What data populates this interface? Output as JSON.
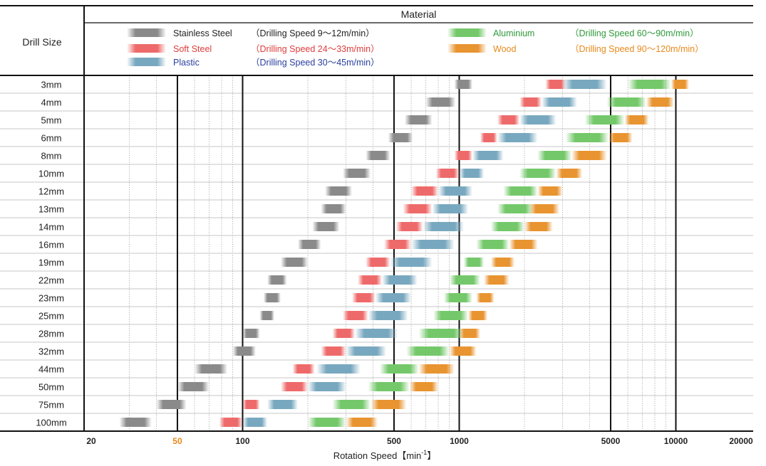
{
  "chart_data": {
    "type": "range-bar",
    "x_scale": "log",
    "xlim": [
      20,
      20000
    ],
    "header_left": "Drill Size",
    "header_top": "Material",
    "xlabel_main": "Rotation Speed【min",
    "xlabel_sup": "-1",
    "xlabel_close": "】",
    "x_ticks": [
      {
        "value": 20,
        "label": "20",
        "color": "#222222"
      },
      {
        "value": 50,
        "label": "50",
        "color": "#e8891a"
      },
      {
        "value": 100,
        "label": "100",
        "color": "#222222"
      },
      {
        "value": 500,
        "label": "500",
        "color": "#222222"
      },
      {
        "value": 1000,
        "label": "1000",
        "color": "#222222"
      },
      {
        "value": 5000,
        "label": "5000",
        "color": "#222222"
      },
      {
        "value": 10000,
        "label": "10000",
        "color": "#222222"
      },
      {
        "value": 20000,
        "label": "20000",
        "color": "#222222"
      }
    ],
    "major_lines": [
      50,
      100,
      500,
      1000,
      5000,
      10000
    ],
    "minor_lines": [
      30,
      40,
      60,
      70,
      80,
      90,
      200,
      300,
      400,
      600,
      700,
      800,
      900,
      2000,
      3000,
      4000,
      6000,
      7000,
      8000,
      9000
    ],
    "legend": [
      {
        "name": "Stainless Steel",
        "speed": "（Drilling Speed 9〜12m/min）",
        "color": "#8a8a8a",
        "text_color": "#222222"
      },
      {
        "name": "Soft Steel",
        "speed": "（Drilling Speed 24〜33m/min）",
        "color": "#ee6a6a",
        "text_color": "#e03c3c"
      },
      {
        "name": "Plastic",
        "speed": "（Drilling Speed 30〜45m/min）",
        "color": "#78a8bf",
        "text_color": "#2a3f9e"
      },
      {
        "name": "Aluminium",
        "speed": "（Drilling Speed 60〜90m/min）",
        "color": "#74c86a",
        "text_color": "#2e9a3a"
      },
      {
        "name": "Wood",
        "speed": "（Drilling Speed 90〜120m/min）",
        "color": "#e89430",
        "text_color": "#e8891a"
      }
    ],
    "categories": [
      "3mm",
      "4mm",
      "5mm",
      "6mm",
      "8mm",
      "10mm",
      "12mm",
      "13mm",
      "14mm",
      "16mm",
      "19mm",
      "22mm",
      "23mm",
      "25mm",
      "28mm",
      "32mm",
      "44mm",
      "50mm",
      "75mm",
      "100mm"
    ],
    "series": [
      {
        "name": "Stainless Steel",
        "ranges": [
          [
            950,
            1150
          ],
          [
            700,
            960
          ],
          [
            560,
            750
          ],
          [
            470,
            610
          ],
          [
            370,
            480
          ],
          [
            290,
            390
          ],
          [
            240,
            320
          ],
          [
            230,
            300
          ],
          [
            210,
            280
          ],
          [
            180,
            230
          ],
          [
            150,
            200
          ],
          [
            130,
            160
          ],
          [
            125,
            150
          ],
          [
            120,
            140
          ],
          [
            100,
            120
          ],
          [
            90,
            115
          ],
          [
            60,
            85
          ],
          [
            50,
            70
          ],
          [
            40,
            55
          ],
          [
            27,
            38
          ]
        ]
      },
      {
        "name": "Soft Steel",
        "ranges": [
          [
            2500,
            3100
          ],
          [
            1900,
            2400
          ],
          [
            1500,
            1900
          ],
          [
            1250,
            1500
          ],
          [
            950,
            1150
          ],
          [
            780,
            1000
          ],
          [
            600,
            800
          ],
          [
            550,
            750
          ],
          [
            510,
            680
          ],
          [
            450,
            600
          ],
          [
            370,
            480
          ],
          [
            340,
            440
          ],
          [
            320,
            410
          ],
          [
            290,
            380
          ],
          [
            260,
            330
          ],
          [
            230,
            300
          ],
          [
            170,
            215
          ],
          [
            150,
            200
          ],
          [
            100,
            120
          ],
          [
            78,
            100
          ]
        ]
      },
      {
        "name": "Plastic",
        "ranges": [
          [
            3000,
            4800
          ],
          [
            2400,
            3500
          ],
          [
            1900,
            2800
          ],
          [
            1500,
            2300
          ],
          [
            1150,
            1600
          ],
          [
            1000,
            1300
          ],
          [
            800,
            1150
          ],
          [
            750,
            1100
          ],
          [
            680,
            1050
          ],
          [
            600,
            950
          ],
          [
            480,
            750
          ],
          [
            440,
            640
          ],
          [
            410,
            600
          ],
          [
            380,
            580
          ],
          [
            330,
            520
          ],
          [
            300,
            460
          ],
          [
            220,
            350
          ],
          [
            200,
            300
          ],
          [
            130,
            180
          ],
          [
            100,
            130
          ]
        ]
      },
      {
        "name": "Aluminium",
        "ranges": [
          [
            6000,
            9500
          ],
          [
            4800,
            7300
          ],
          [
            3800,
            5800
          ],
          [
            3100,
            4900
          ],
          [
            2300,
            3300
          ],
          [
            1900,
            2800
          ],
          [
            1600,
            2300
          ],
          [
            1500,
            2200
          ],
          [
            1400,
            2000
          ],
          [
            1200,
            1700
          ],
          [
            1050,
            1300
          ],
          [
            900,
            1250
          ],
          [
            850,
            1150
          ],
          [
            760,
            1100
          ],
          [
            650,
            1050
          ],
          [
            570,
            900
          ],
          [
            430,
            650
          ],
          [
            380,
            590
          ],
          [
            260,
            390
          ],
          [
            200,
            300
          ]
        ]
      },
      {
        "name": "Wood",
        "ranges": [
          [
            9500,
            11500
          ],
          [
            7300,
            9800
          ],
          [
            5800,
            7500
          ],
          [
            4900,
            6300
          ],
          [
            3300,
            4800
          ],
          [
            2800,
            3700
          ],
          [
            2300,
            3000
          ],
          [
            2100,
            2900
          ],
          [
            2000,
            2700
          ],
          [
            1700,
            2300
          ],
          [
            1400,
            1800
          ],
          [
            1300,
            1700
          ],
          [
            1200,
            1450
          ],
          [
            1100,
            1350
          ],
          [
            1000,
            1250
          ],
          [
            900,
            1200
          ],
          [
            650,
            950
          ],
          [
            590,
            800
          ],
          [
            390,
            570
          ],
          [
            300,
            420
          ]
        ]
      }
    ]
  }
}
